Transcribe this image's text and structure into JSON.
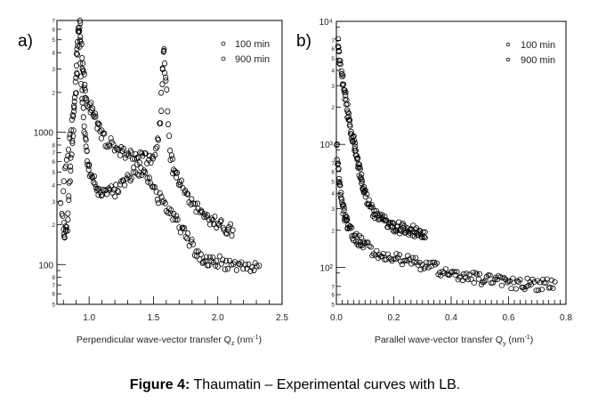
{
  "figure": {
    "caption_bold": "Figure 4:",
    "caption_text": " Thaumatin – Experimental curves with LB."
  },
  "chart_data": [
    {
      "type": "scatter",
      "panel_label": "a)",
      "title": "",
      "xlabel": "Perpendicular wave-vector transfer Q",
      "xlabel_sub": "z",
      "xlabel_unit": " (nm",
      "xlabel_sup": "-1",
      "xlabel_end": ")",
      "ylabel": "",
      "yscale": "log",
      "xlim": [
        0.75,
        2.5
      ],
      "ylim": [
        50,
        7000
      ],
      "x_ticks": [
        1.0,
        1.5,
        2.0,
        2.5
      ],
      "x_tick_labels": [
        "1.0",
        "1.5",
        "2.0",
        "2.5"
      ],
      "y_major_ticks": [
        100,
        1000
      ],
      "y_major_labels": [
        "100",
        "1000"
      ],
      "y_minor_ticks": [
        50,
        60,
        70,
        80,
        200,
        300,
        400,
        500,
        600,
        700,
        800,
        2000,
        3000,
        4000,
        5000,
        6000,
        7000
      ],
      "y_minor_labels": [
        "5",
        "6",
        "7",
        "8",
        "2",
        "3",
        "4",
        "5",
        "6",
        "7",
        "8",
        "2",
        "3",
        "4",
        "5",
        "6",
        "7"
      ],
      "legend": {
        "position": "top-right",
        "entries": [
          "100 min",
          "900 min"
        ]
      },
      "grid": false,
      "series": [
        {
          "name": "900 min",
          "x": [
            0.8,
            0.82,
            0.84,
            0.86,
            0.88,
            0.9,
            0.91,
            0.92,
            0.93,
            0.94,
            0.95,
            0.96,
            0.97,
            0.98,
            1.0,
            1.02,
            1.04,
            1.06,
            1.08,
            1.1,
            1.13,
            1.16,
            1.19,
            1.22,
            1.25,
            1.28,
            1.31,
            1.34,
            1.37,
            1.4,
            1.43,
            1.46,
            1.49,
            1.52,
            1.54,
            1.56,
            1.57,
            1.58,
            1.59,
            1.6,
            1.62,
            1.64,
            1.66,
            1.68,
            1.7,
            1.73,
            1.76,
            1.79,
            1.82,
            1.85,
            1.88,
            1.91,
            1.94,
            1.97,
            2.0,
            2.03,
            2.06,
            2.09,
            2.12
          ],
          "y": [
            400,
            550,
            800,
            1100,
            1500,
            2200,
            3500,
            7000,
            6000,
            4200,
            3000,
            2500,
            2000,
            1800,
            1600,
            1450,
            1300,
            1150,
            1050,
            950,
            880,
            820,
            780,
            750,
            720,
            700,
            680,
            660,
            650,
            660,
            640,
            620,
            640,
            700,
            900,
            1500,
            2800,
            4500,
            3000,
            1900,
            900,
            600,
            520,
            480,
            430,
            380,
            340,
            310,
            280,
            260,
            240,
            230,
            220,
            210,
            205,
            200,
            190,
            185,
            180
          ]
        },
        {
          "name": "100 min",
          "x": [
            0.78,
            0.8,
            0.81,
            0.82,
            0.83,
            0.84,
            0.85,
            0.86,
            0.87,
            0.88,
            0.89,
            0.9,
            0.91,
            0.92,
            0.93,
            0.94,
            0.95,
            0.96,
            0.97,
            0.98,
            0.99,
            1.0,
            1.02,
            1.04,
            1.06,
            1.08,
            1.1,
            1.13,
            1.16,
            1.19,
            1.22,
            1.25,
            1.28,
            1.31,
            1.34,
            1.37,
            1.4,
            1.43,
            1.46,
            1.49,
            1.52,
            1.55,
            1.58,
            1.61,
            1.64,
            1.67,
            1.7,
            1.73,
            1.76,
            1.79,
            1.82,
            1.85,
            1.88,
            1.91,
            1.94,
            1.97,
            2.0,
            2.04,
            2.08,
            2.12,
            2.16,
            2.2,
            2.24,
            2.28,
            2.32
          ],
          "y": [
            280,
            190,
            180,
            175,
            170,
            300,
            430,
            600,
            900,
            1200,
            2000,
            3000,
            5000,
            7000,
            4000,
            2400,
            1600,
            1100,
            850,
            700,
            600,
            520,
            480,
            420,
            380,
            350,
            360,
            380,
            370,
            340,
            380,
            400,
            420,
            450,
            480,
            520,
            500,
            470,
            430,
            380,
            340,
            310,
            290,
            260,
            240,
            220,
            200,
            180,
            160,
            145,
            130,
            120,
            112,
            108,
            105,
            104,
            105,
            103,
            102,
            101,
            100,
            99,
            97,
            95,
            93
          ]
        }
      ]
    },
    {
      "type": "scatter",
      "panel_label": "b)",
      "title": "",
      "xlabel": "Parallel wave-vector transfer Q",
      "xlabel_sub": "y",
      "xlabel_unit": " (nm",
      "xlabel_sup": "-1",
      "xlabel_end": ")",
      "ylabel": "",
      "yscale": "log",
      "xlim": [
        0.0,
        0.8
      ],
      "ylim": [
        50,
        10000
      ],
      "x_ticks": [
        0.0,
        0.2,
        0.4,
        0.6,
        0.8
      ],
      "x_tick_labels": [
        "0.0",
        "0.2",
        "0.4",
        "0.6",
        "0.8"
      ],
      "y_major_ticks": [
        100,
        1000,
        10000
      ],
      "y_major_labels": [
        "10²",
        "10³",
        "10⁴"
      ],
      "y_minor_ticks": [
        50,
        60,
        70,
        200,
        300,
        400,
        500,
        600,
        700,
        2000,
        3000,
        4000,
        5000,
        6000,
        7000
      ],
      "y_minor_labels": [
        "5",
        "6",
        "7",
        "2",
        "3",
        "4",
        "5",
        "6",
        "7",
        "2",
        "3",
        "4",
        "5",
        "6",
        "7"
      ],
      "legend": {
        "position": "top-right",
        "entries": [
          "100 min",
          "900 min"
        ]
      },
      "grid": false,
      "series": [
        {
          "name": "900 min",
          "x": [
            0.005,
            0.01,
            0.015,
            0.02,
            0.025,
            0.03,
            0.035,
            0.04,
            0.045,
            0.05,
            0.055,
            0.06,
            0.065,
            0.07,
            0.075,
            0.08,
            0.085,
            0.09,
            0.095,
            0.1,
            0.11,
            0.12,
            0.13,
            0.14,
            0.15,
            0.16,
            0.17,
            0.18,
            0.19,
            0.2,
            0.21,
            0.22,
            0.23,
            0.24,
            0.25,
            0.26,
            0.27,
            0.28,
            0.29,
            0.3,
            0.31
          ],
          "y": [
            7000,
            5500,
            4500,
            3700,
            3000,
            2500,
            2100,
            1800,
            1550,
            1350,
            1200,
            1050,
            930,
            820,
            720,
            630,
            560,
            500,
            450,
            410,
            350,
            310,
            280,
            265,
            250,
            240,
            232,
            225,
            220,
            215,
            212,
            210,
            207,
            205,
            203,
            200,
            198,
            196,
            194,
            192,
            190
          ]
        },
        {
          "name": "100 min",
          "x": [
            0.002,
            0.005,
            0.01,
            0.015,
            0.02,
            0.025,
            0.03,
            0.035,
            0.04,
            0.05,
            0.06,
            0.07,
            0.08,
            0.09,
            0.1,
            0.12,
            0.14,
            0.16,
            0.18,
            0.2,
            0.22,
            0.24,
            0.26,
            0.28,
            0.3,
            0.32,
            0.34,
            0.36,
            0.38,
            0.4,
            0.42,
            0.44,
            0.46,
            0.48,
            0.5,
            0.52,
            0.54,
            0.56,
            0.58,
            0.6,
            0.62,
            0.64,
            0.66,
            0.68,
            0.7,
            0.72,
            0.74,
            0.76
          ],
          "y": [
            1000,
            700,
            500,
            400,
            330,
            290,
            260,
            235,
            215,
            195,
            180,
            170,
            163,
            157,
            150,
            140,
            133,
            128,
            124,
            120,
            117,
            114,
            111,
            108,
            105,
            102,
            99,
            96,
            93,
            90,
            88,
            86,
            84,
            82,
            80,
            79,
            78,
            77,
            76,
            75,
            74,
            74,
            73,
            73,
            72,
            72,
            72,
            71
          ]
        }
      ]
    }
  ]
}
